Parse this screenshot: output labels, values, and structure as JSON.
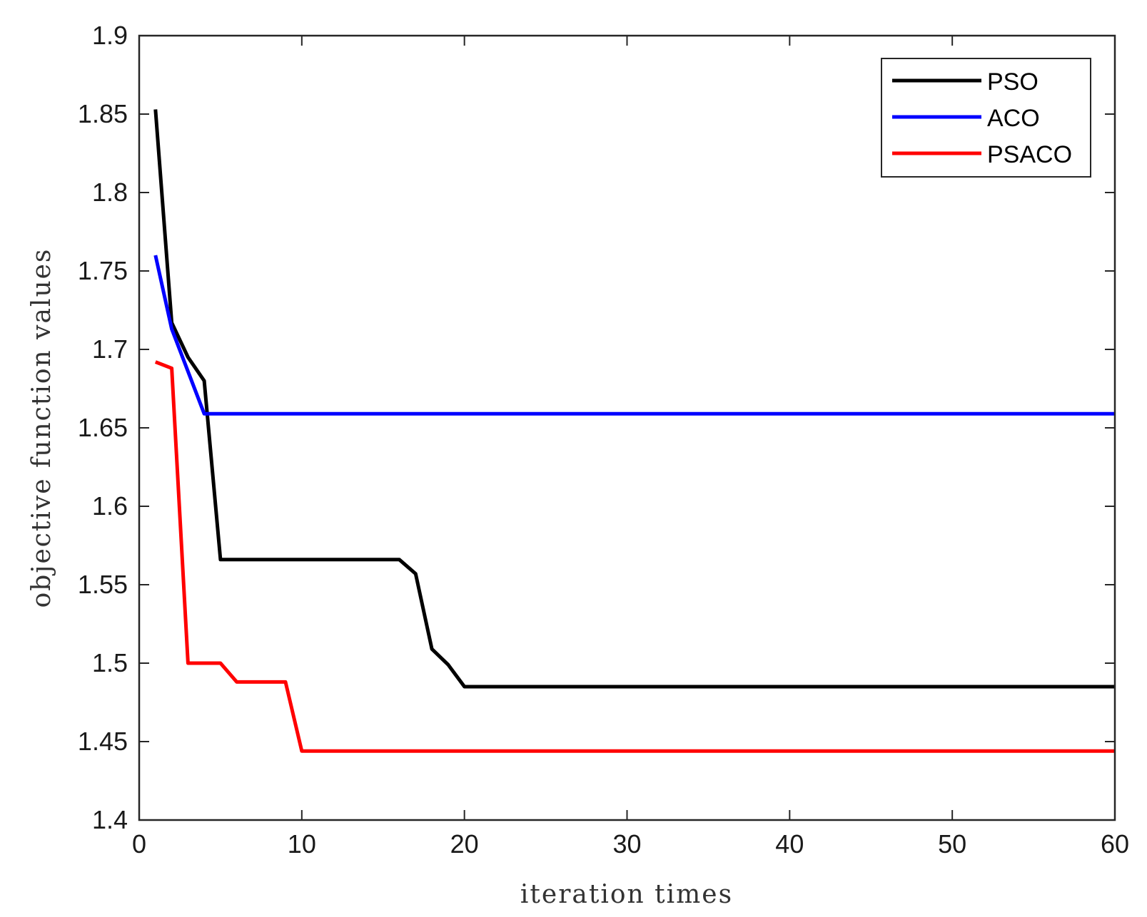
{
  "chart_data": {
    "type": "line",
    "title": "",
    "xlabel": "iteration times",
    "ylabel": "objective function values",
    "xlim": [
      0,
      60
    ],
    "ylim": [
      1.4,
      1.9
    ],
    "xticks": [
      0,
      10,
      20,
      30,
      40,
      50,
      60
    ],
    "yticks": [
      1.4,
      1.45,
      1.5,
      1.55,
      1.6,
      1.65,
      1.7,
      1.75,
      1.8,
      1.85,
      1.9
    ],
    "grid": false,
    "legend_position": "top-right",
    "series": [
      {
        "name": "PSO",
        "color": "#000000",
        "points": [
          [
            1,
            1.853
          ],
          [
            2,
            1.717
          ],
          [
            3,
            1.695
          ],
          [
            4,
            1.68
          ],
          [
            5,
            1.566
          ],
          [
            6,
            1.566
          ],
          [
            8,
            1.566
          ],
          [
            10,
            1.566
          ],
          [
            12,
            1.566
          ],
          [
            14,
            1.566
          ],
          [
            16,
            1.566
          ],
          [
            17,
            1.557
          ],
          [
            18,
            1.509
          ],
          [
            19,
            1.499
          ],
          [
            20,
            1.485
          ],
          [
            30,
            1.485
          ],
          [
            40,
            1.485
          ],
          [
            50,
            1.485
          ],
          [
            60,
            1.485
          ]
        ]
      },
      {
        "name": "ACO",
        "color": "#0000ff",
        "points": [
          [
            1,
            1.76
          ],
          [
            2,
            1.713
          ],
          [
            4,
            1.659
          ],
          [
            10,
            1.659
          ],
          [
            20,
            1.659
          ],
          [
            30,
            1.659
          ],
          [
            40,
            1.659
          ],
          [
            50,
            1.659
          ],
          [
            60,
            1.659
          ]
        ]
      },
      {
        "name": "PSACO",
        "color": "#ff0000",
        "points": [
          [
            1,
            1.692
          ],
          [
            2,
            1.688
          ],
          [
            3,
            1.5
          ],
          [
            4,
            1.5
          ],
          [
            5,
            1.5
          ],
          [
            6,
            1.488
          ],
          [
            7,
            1.488
          ],
          [
            8,
            1.488
          ],
          [
            9,
            1.488
          ],
          [
            10,
            1.444
          ],
          [
            20,
            1.444
          ],
          [
            30,
            1.444
          ],
          [
            40,
            1.444
          ],
          [
            50,
            1.444
          ],
          [
            60,
            1.444
          ]
        ]
      }
    ]
  }
}
